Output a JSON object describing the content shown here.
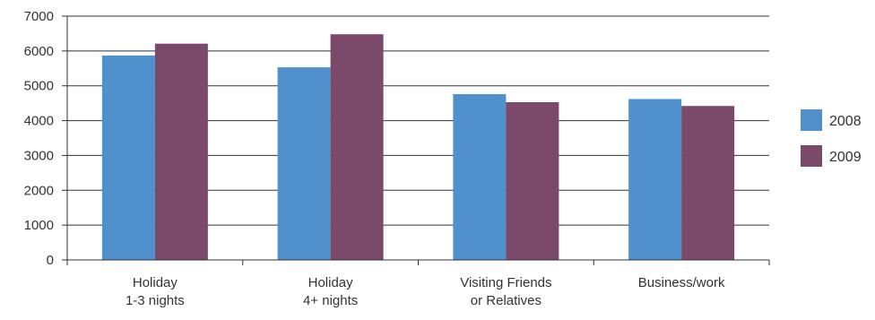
{
  "chart_data": {
    "type": "bar",
    "title": "",
    "xlabel": "",
    "ylabel": "",
    "categories": [
      [
        "Holiday",
        "1-3 nights"
      ],
      [
        "Holiday",
        "4+ nights"
      ],
      [
        "Visiting Friends",
        "or Relatives"
      ],
      [
        "Business/work"
      ]
    ],
    "series": [
      {
        "name": "2008",
        "color": "#4f90cd",
        "values": [
          5870,
          5530,
          4760,
          4620
        ]
      },
      {
        "name": "2009",
        "color": "#7b4a6b",
        "values": [
          6210,
          6480,
          4530,
          4420
        ]
      }
    ],
    "ylim": [
      0,
      7000
    ],
    "yticks": [
      0,
      1000,
      2000,
      3000,
      4000,
      5000,
      6000,
      7000
    ],
    "grid": true,
    "legend_position": "right"
  }
}
